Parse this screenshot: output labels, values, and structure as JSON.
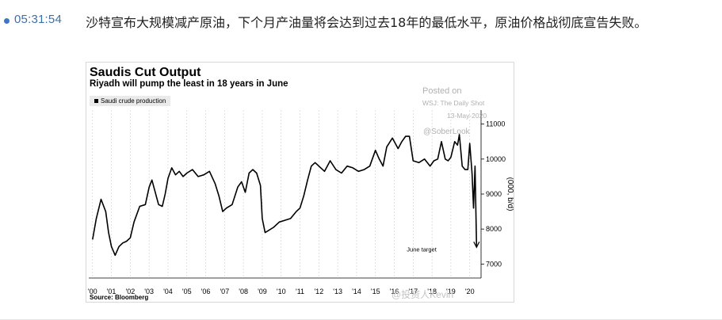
{
  "post": {
    "timestamp": "05:31:54",
    "headline": "沙特宣布大规模减产原油，下个月产油量将会达到过去18年的最低水平，原油价格战彻底宣告失败。"
  },
  "chart": {
    "title": "Saudis Cut Output",
    "subtitle": "Riyadh will pump the least in 18 years in June",
    "legend": "Saudi crude production",
    "source": "Source: Bloomberg",
    "annotation": "June target",
    "watermark": {
      "posted_on": "Posted on",
      "outlet": "WSJ: The Daily Shot",
      "date": "13-May-2020",
      "handle": "@SoberLook",
      "weibo": "@投资人Kevin"
    },
    "colors": {
      "line": "#000000",
      "grid": "#cfcfcf",
      "bullet": "#3a78c2",
      "time": "#3f6fa8"
    }
  },
  "chart_data": {
    "type": "line",
    "title": "Saudis Cut Output",
    "subtitle": "Riyadh will pump the least in 18 years in June",
    "ylabel": "(000, b/d)",
    "ylim": [
      6600,
      11400
    ],
    "yticks": [
      7000,
      8000,
      9000,
      10000,
      11000
    ],
    "xlim": [
      1999.8,
      2020.6
    ],
    "xtick_labels": [
      "'00",
      "'01",
      "'02",
      "'03",
      "'04",
      "'05",
      "'06",
      "'07",
      "'08",
      "'09",
      "'10",
      "'11",
      "'12",
      "'13",
      "'14",
      "'15",
      "'16",
      "'17",
      "'18",
      "'19",
      "'20"
    ],
    "xtick_values": [
      2000,
      2001,
      2002,
      2003,
      2004,
      2005,
      2006,
      2007,
      2008,
      2009,
      2010,
      2011,
      2012,
      2013,
      2014,
      2015,
      2016,
      2017,
      2018,
      2019,
      2020
    ],
    "grid": "vertical dashed",
    "legend_position": "top-left",
    "series": [
      {
        "name": "Saudi crude production",
        "x": [
          2000.0,
          2000.2,
          2000.45,
          2000.7,
          2000.85,
          2001.0,
          2001.2,
          2001.4,
          2001.6,
          2001.8,
          2002.0,
          2002.2,
          2002.5,
          2002.8,
          2003.0,
          2003.15,
          2003.3,
          2003.5,
          2003.7,
          2003.85,
          2004.0,
          2004.2,
          2004.4,
          2004.6,
          2004.8,
          2005.0,
          2005.3,
          2005.6,
          2005.9,
          2006.2,
          2006.5,
          2006.7,
          2006.9,
          2007.1,
          2007.4,
          2007.7,
          2007.9,
          2008.1,
          2008.3,
          2008.5,
          2008.7,
          2008.9,
          2009.0,
          2009.15,
          2009.3,
          2009.6,
          2009.9,
          2010.2,
          2010.5,
          2010.8,
          2011.0,
          2011.2,
          2011.4,
          2011.6,
          2011.8,
          2012.0,
          2012.3,
          2012.6,
          2012.9,
          2013.2,
          2013.5,
          2013.8,
          2014.1,
          2014.4,
          2014.7,
          2015.0,
          2015.2,
          2015.4,
          2015.6,
          2015.9,
          2016.2,
          2016.4,
          2016.6,
          2016.8,
          2017.0,
          2017.3,
          2017.6,
          2017.9,
          2018.1,
          2018.3,
          2018.5,
          2018.7,
          2018.85,
          2019.0,
          2019.2,
          2019.35,
          2019.45,
          2019.6,
          2019.75,
          2019.9,
          2020.0,
          2020.12,
          2020.2,
          2020.28,
          2020.36
        ],
        "y": [
          7700,
          8300,
          8850,
          8500,
          7900,
          7500,
          7250,
          7500,
          7600,
          7650,
          7750,
          8200,
          8650,
          8700,
          9200,
          9400,
          9100,
          8700,
          8650,
          9000,
          9450,
          9750,
          9550,
          9650,
          9500,
          9600,
          9700,
          9500,
          9550,
          9650,
          9300,
          8950,
          8500,
          8600,
          8700,
          9200,
          9350,
          9050,
          9600,
          9700,
          9600,
          9250,
          8300,
          7900,
          7950,
          8050,
          8200,
          8250,
          8300,
          8500,
          8600,
          8950,
          9400,
          9800,
          9900,
          9800,
          9650,
          9950,
          9700,
          9600,
          9800,
          9750,
          9650,
          9700,
          9800,
          10250,
          10000,
          9800,
          10350,
          10600,
          10300,
          10500,
          10650,
          10650,
          9950,
          9900,
          10000,
          9800,
          9950,
          10000,
          10500,
          10000,
          9950,
          10050,
          10500,
          10400,
          10700,
          9800,
          9700,
          9700,
          10450,
          9600,
          8600,
          9800,
          7500
        ]
      }
    ],
    "annotations": [
      {
        "text": "June target",
        "x": 2020.36,
        "y": 7500
      }
    ]
  }
}
